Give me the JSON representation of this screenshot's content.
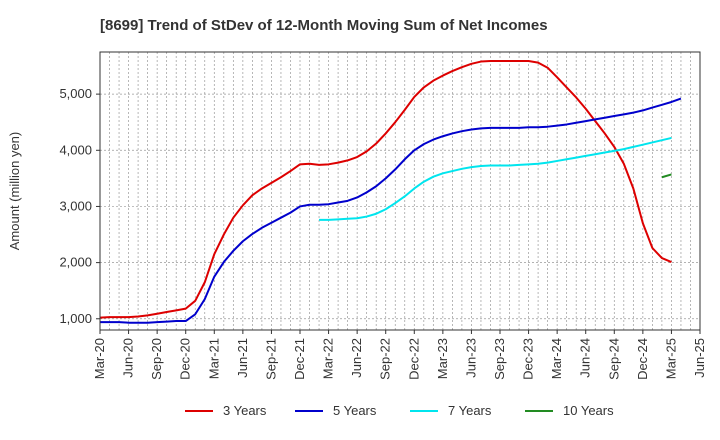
{
  "chart_data": {
    "type": "line",
    "title": "[8699]  Trend of StDev of 12-Month Moving Sum of Net Incomes",
    "ylabel": "Amount (million yen)",
    "xlabel": "",
    "ylim": [
      800,
      5750
    ],
    "yticks": [
      1000,
      2000,
      3000,
      4000,
      5000
    ],
    "ytick_labels": [
      "1,000",
      "2,000",
      "3,000",
      "4,000",
      "5,000"
    ],
    "x_tick_labels": [
      "Mar-20",
      "Jun-20",
      "Sep-20",
      "Dec-20",
      "Mar-21",
      "Jun-21",
      "Sep-21",
      "Dec-21",
      "Mar-22",
      "Jun-22",
      "Sep-22",
      "Dec-22",
      "Mar-23",
      "Jun-23",
      "Sep-23",
      "Dec-23",
      "Mar-24",
      "Jun-24",
      "Sep-24",
      "Dec-24",
      "Mar-25",
      "Jun-25"
    ],
    "grid": true,
    "legend_position": "bottom",
    "x_start": "Mar-20",
    "series": [
      {
        "name": "3 Years",
        "color": "#dd0000",
        "start": "Mar-20",
        "values": [
          1020,
          1030,
          1030,
          1030,
          1040,
          1060,
          1090,
          1120,
          1150,
          1180,
          1320,
          1650,
          2150,
          2500,
          2800,
          3020,
          3200,
          3320,
          3420,
          3520,
          3630,
          3750,
          3760,
          3740,
          3750,
          3780,
          3820,
          3880,
          3980,
          4120,
          4300,
          4500,
          4720,
          4950,
          5120,
          5240,
          5330,
          5410,
          5480,
          5540,
          5580,
          5590,
          5590,
          5590,
          5590,
          5590,
          5560,
          5470,
          5300,
          5120,
          4940,
          4740,
          4520,
          4300,
          4060,
          3760,
          3320,
          2700,
          2260,
          2080,
          2010
        ]
      },
      {
        "name": "5 Years",
        "color": "#0000cc",
        "start": "Mar-20",
        "values": [
          940,
          940,
          940,
          930,
          930,
          930,
          940,
          950,
          960,
          960,
          1080,
          1350,
          1750,
          2010,
          2210,
          2380,
          2510,
          2620,
          2710,
          2800,
          2890,
          3000,
          3030,
          3030,
          3040,
          3070,
          3100,
          3160,
          3250,
          3360,
          3500,
          3660,
          3840,
          4000,
          4110,
          4190,
          4250,
          4300,
          4340,
          4370,
          4390,
          4400,
          4400,
          4400,
          4400,
          4410,
          4410,
          4420,
          4440,
          4460,
          4490,
          4520,
          4550,
          4580,
          4610,
          4640,
          4670,
          4710,
          4760,
          4810,
          4860,
          4920
        ]
      },
      {
        "name": "7 Years",
        "color": "#00e5ee",
        "start": "Feb-22",
        "values": [
          2760,
          2760,
          2770,
          2780,
          2790,
          2820,
          2870,
          2950,
          3060,
          3180,
          3320,
          3440,
          3530,
          3590,
          3630,
          3670,
          3700,
          3720,
          3730,
          3730,
          3730,
          3740,
          3750,
          3760,
          3780,
          3810,
          3840,
          3870,
          3900,
          3930,
          3960,
          3990,
          4020,
          4060,
          4100,
          4140,
          4180,
          4220
        ]
      },
      {
        "name": "10 Years",
        "color": "#228b22",
        "start": "Feb-25",
        "values": [
          3520,
          3570
        ]
      }
    ]
  }
}
